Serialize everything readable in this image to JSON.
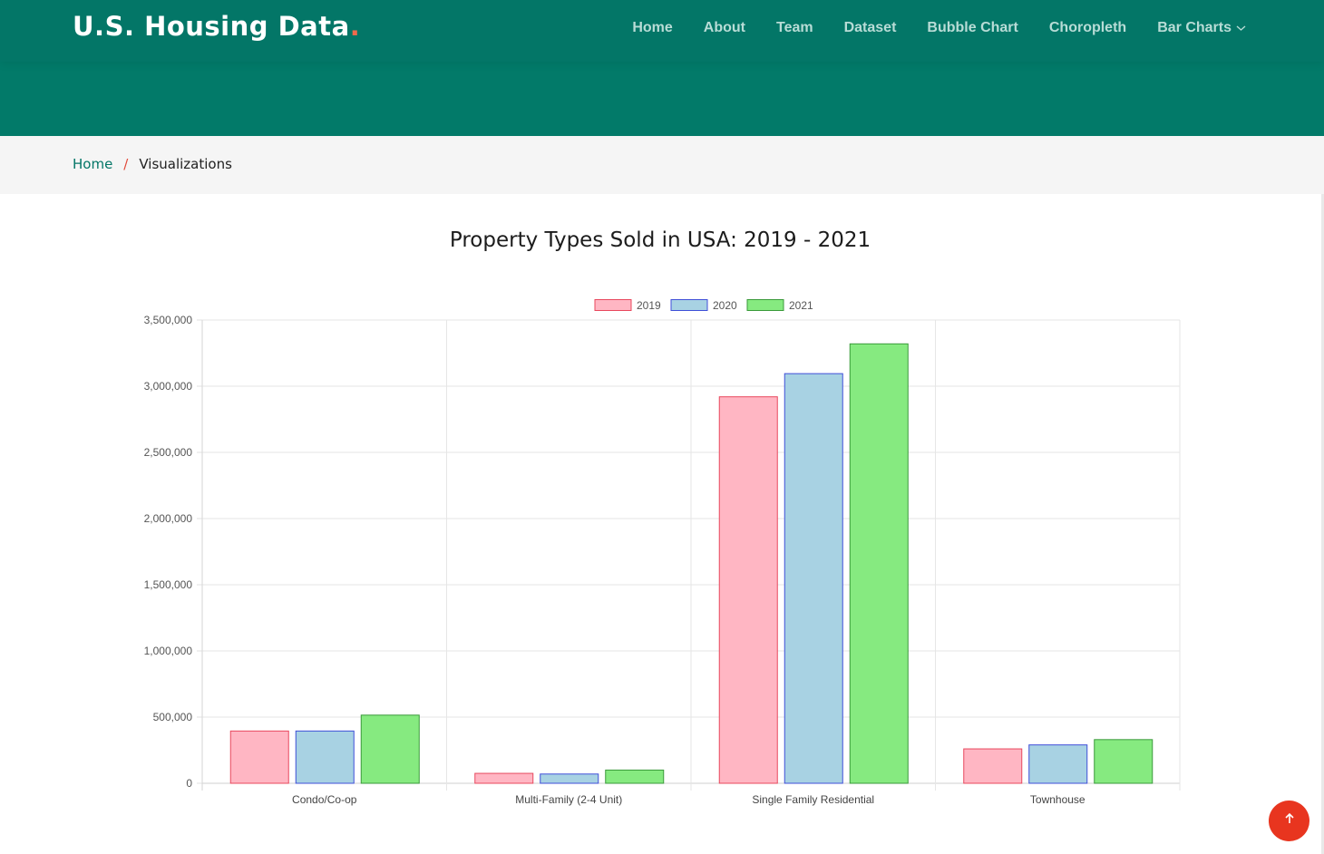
{
  "header": {
    "logo_text": "U.S. Housing Data",
    "logo_dot": ".",
    "accent_color": "#037667",
    "nav": [
      {
        "label": "Home"
      },
      {
        "label": "About"
      },
      {
        "label": "Team"
      },
      {
        "label": "Dataset"
      },
      {
        "label": "Bubble Chart"
      },
      {
        "label": "Choropleth"
      },
      {
        "label": "Bar Charts",
        "icon": "chevron-down-icon"
      }
    ]
  },
  "breadcrumb": {
    "home": "Home",
    "separator": "/",
    "current": "Visualizations"
  },
  "chart_data": {
    "type": "bar",
    "title": "Property Types Sold in USA: 2019 - 2021",
    "xlabel": "",
    "ylabel": "",
    "categories": [
      "Condo/Co-op",
      "Multi-Family (2-4 Unit)",
      "Single Family Residential",
      "Townhouse"
    ],
    "series": [
      {
        "name": "2019",
        "values": [
          395000,
          75000,
          2920000,
          260000
        ],
        "fill": "#ffb6c3",
        "stroke": "#e8485e"
      },
      {
        "name": "2020",
        "values": [
          395000,
          70000,
          3095000,
          290000
        ],
        "fill": "#a8d2e3",
        "stroke": "#3f4fd8"
      },
      {
        "name": "2021",
        "values": [
          515000,
          100000,
          3320000,
          330000
        ],
        "fill": "#86ea80",
        "stroke": "#3a9a3a"
      }
    ],
    "ylim": [
      0,
      3500000
    ],
    "y_ticks": [
      "0",
      "500,000",
      "1,000,000",
      "1,500,000",
      "2,000,000",
      "2,500,000",
      "3,000,000",
      "3,500,000"
    ],
    "grid": true,
    "legend": "top-center"
  },
  "scroll_top": {
    "icon": "arrow-up-icon",
    "color": "#e8351f"
  }
}
